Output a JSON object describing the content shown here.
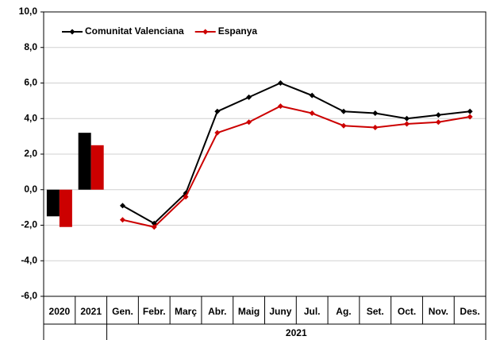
{
  "chart_data": {
    "type": "combo",
    "bar_categories": [
      "2020",
      "2021"
    ],
    "categories": [
      "Gen.",
      "Febr.",
      "Març",
      "Abr.",
      "Maig",
      "Juny",
      "Jul.",
      "Ag.",
      "Set.",
      "Oct.",
      "Nov.",
      "Des."
    ],
    "group_label": "2021",
    "series": [
      {
        "name": "Comunitat Valenciana",
        "color": "#000000",
        "bar_values": [
          -1.5,
          3.2
        ],
        "values": [
          -0.9,
          -1.9,
          -0.2,
          4.4,
          5.2,
          6.0,
          5.3,
          4.4,
          4.3,
          4.0,
          4.2,
          4.4
        ]
      },
      {
        "name": "Espanya",
        "color": "#cc0000",
        "bar_values": [
          -2.1,
          2.5
        ],
        "values": [
          -1.7,
          -2.1,
          -0.4,
          3.2,
          3.8,
          4.7,
          4.3,
          3.6,
          3.5,
          3.7,
          3.8,
          4.1
        ]
      }
    ],
    "ylim": [
      -6,
      10
    ],
    "yticks": [
      {
        "value": -6,
        "label": "-6,0"
      },
      {
        "value": -4,
        "label": "-4,0"
      },
      {
        "value": -2,
        "label": "-2,0"
      },
      {
        "value": 0,
        "label": "0,0"
      },
      {
        "value": 2,
        "label": "2,0"
      },
      {
        "value": 4,
        "label": "4,0"
      },
      {
        "value": 6,
        "label": "6,0"
      },
      {
        "value": 8,
        "label": "8,0"
      },
      {
        "value": 10,
        "label": "10,0"
      }
    ],
    "grid": true,
    "legend": "top-left"
  }
}
